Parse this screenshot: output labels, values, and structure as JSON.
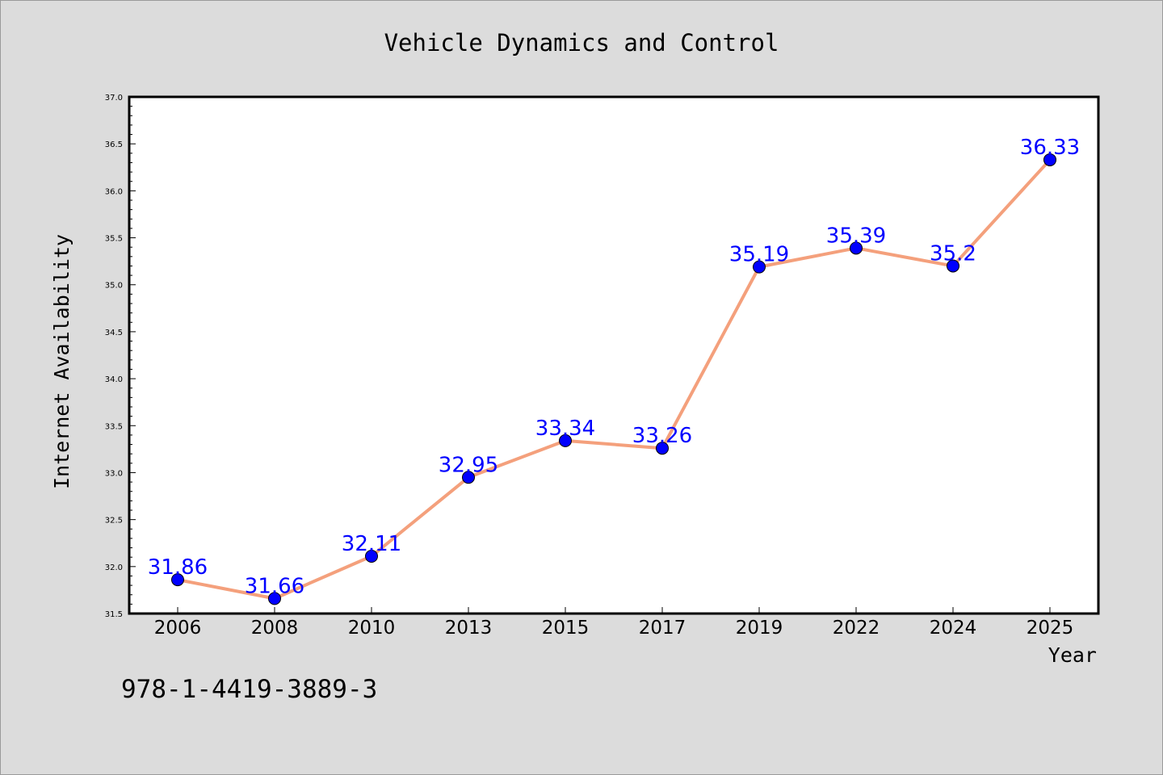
{
  "chart_data": {
    "type": "line",
    "title": "Vehicle Dynamics and Control",
    "xlabel": "Year",
    "ylabel": "Internet Availability",
    "categories": [
      "2006",
      "2008",
      "2010",
      "2013",
      "2015",
      "2017",
      "2019",
      "2022",
      "2024",
      "2025"
    ],
    "series": [
      {
        "values": [
          31.86,
          31.66,
          32.11,
          32.95,
          33.34,
          33.26,
          35.19,
          35.39,
          35.2,
          36.33
        ],
        "data_labels": [
          "31.86",
          "31.66",
          "32.11",
          "32.95",
          "33.34",
          "33.26",
          "35.19",
          "35.39",
          "35.2",
          "36.33"
        ]
      }
    ],
    "ylim": [
      31.5,
      37.0
    ],
    "yticks": [
      "31.5",
      "32.0",
      "32.5",
      "33.0",
      "33.5",
      "34.0",
      "34.5",
      "35.0",
      "35.5",
      "36.0",
      "36.5",
      "37.0"
    ],
    "grid": false,
    "line_color": "#f4a07c",
    "marker_color": "#0000ff",
    "label_color": "#0000ff"
  },
  "footer_text": "978-1-4419-3889-3"
}
